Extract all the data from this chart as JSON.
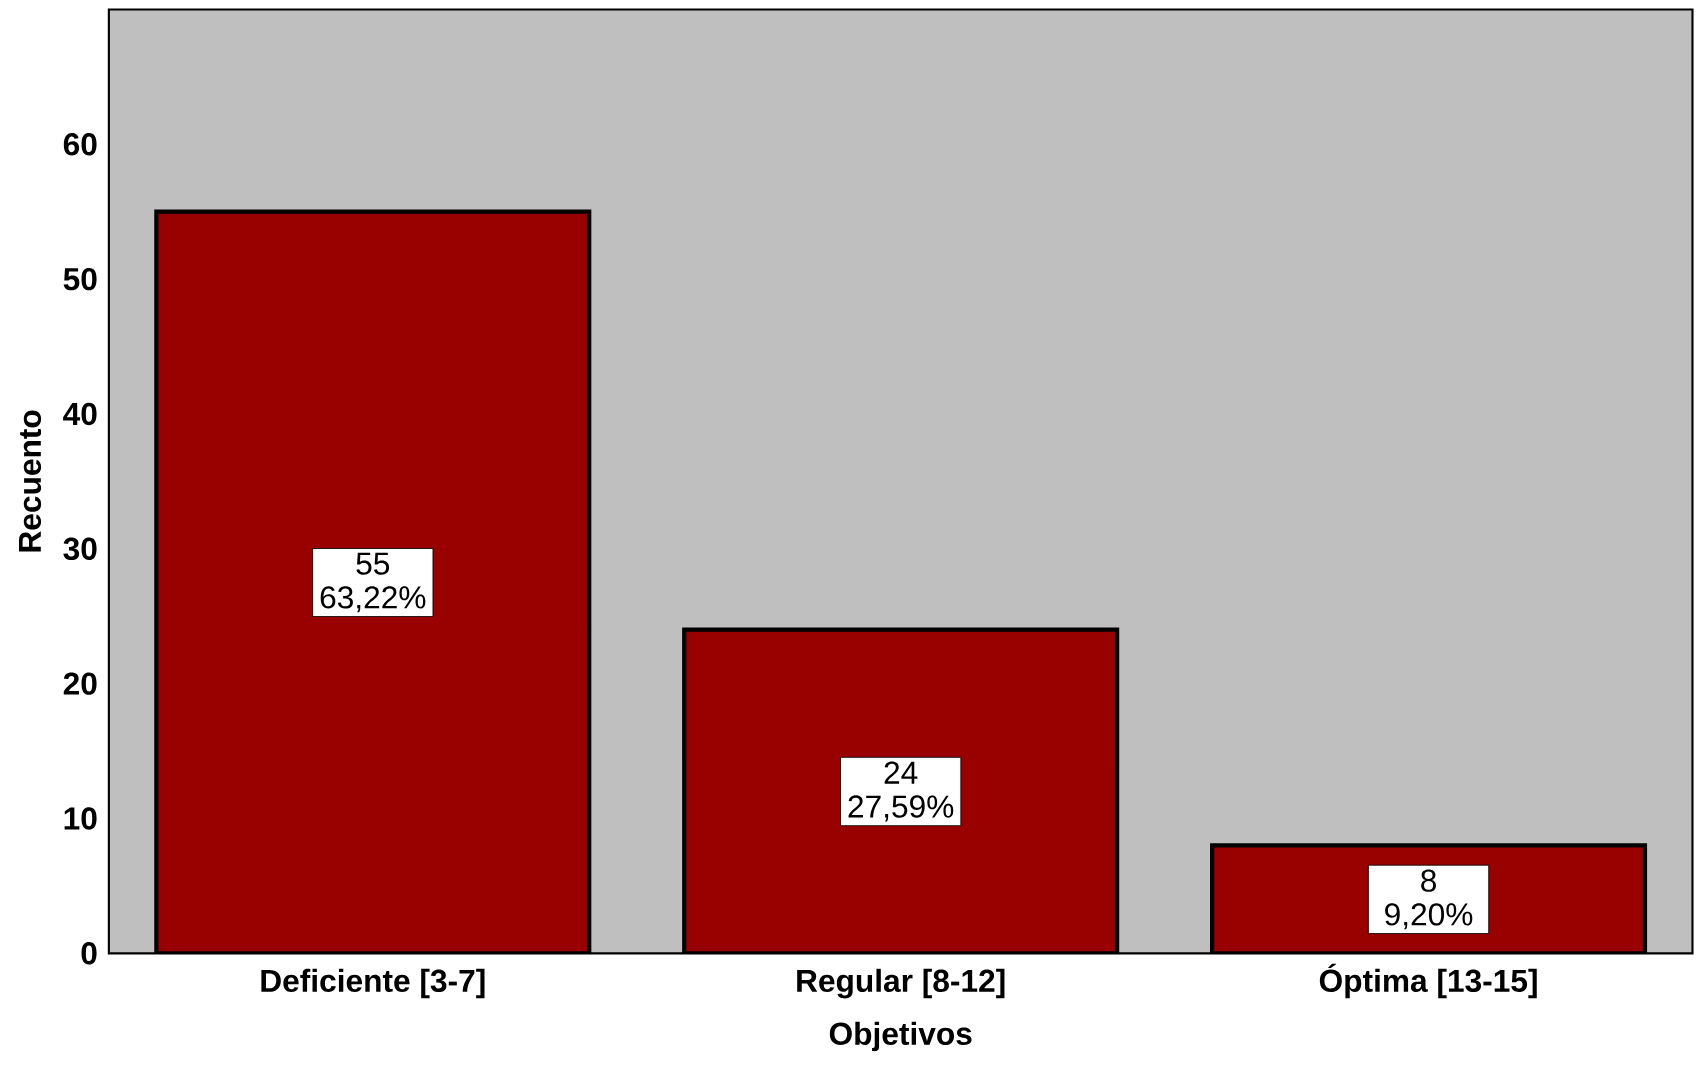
{
  "chart_data": {
    "type": "bar",
    "xlabel": "Objetivos",
    "ylabel": "Recuento",
    "categories": [
      "Deficiente [3-7]",
      "Regular [8-12]",
      "Óptima [13-15]"
    ],
    "values": [
      55,
      24,
      8
    ],
    "color": "#990000",
    "value_labels": [
      "55 63,22%",
      "24 27,59%",
      "8 9,20%"
    ],
    "ylim": [
      0,
      70
    ],
    "yticks": [
      0,
      10,
      20,
      30,
      40,
      50,
      60
    ]
  }
}
